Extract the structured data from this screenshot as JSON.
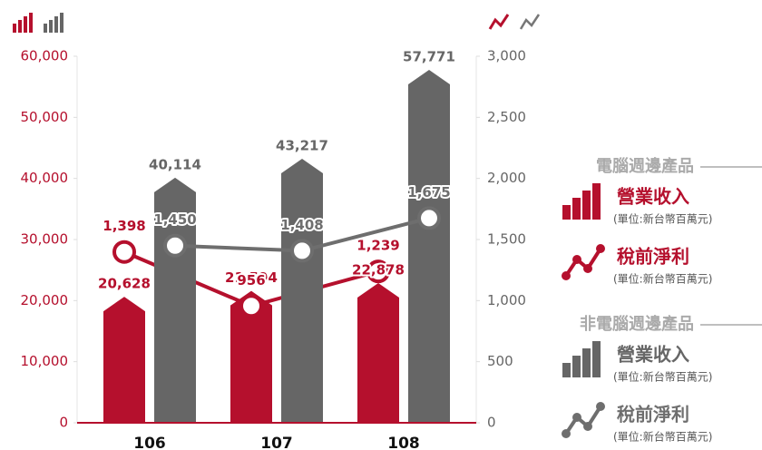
{
  "chart_data": {
    "type": "bar",
    "categories": [
      "106",
      "107",
      "108"
    ],
    "legend_groups": [
      {
        "title": "電腦週邊產品"
      },
      {
        "title": "非電腦週邊產品"
      }
    ],
    "series": [
      {
        "name": "營業收入",
        "note": "(單位:新台幣百萬元)",
        "type": "bar",
        "color": "#b5102d",
        "values": [
          20628,
          21594,
          22878
        ],
        "value_labels": [
          "20,628",
          "21,594",
          "22,878"
        ]
      },
      {
        "name": "稅前淨利",
        "note": "(單位:新台幣百萬元)",
        "type": "line",
        "axis": "y2",
        "color": "#b5102d",
        "values": [
          1398,
          956,
          1239
        ],
        "value_labels": [
          "1,398",
          "956",
          "1,239"
        ]
      },
      {
        "name": "營業收入",
        "note": "(單位:新台幣百萬元)",
        "type": "bar",
        "color": "#666666",
        "values": [
          40114,
          43217,
          57771
        ],
        "value_labels": [
          "40,114",
          "43,217",
          "57,771"
        ]
      },
      {
        "name": "稅前淨利",
        "note": "(單位:新台幣百萬元)",
        "type": "line",
        "axis": "y2",
        "color": "#6e6e6e",
        "values": [
          1450,
          1408,
          1675
        ],
        "value_labels": [
          "1,450",
          "1,408",
          "1,675"
        ]
      }
    ],
    "ylim": [
      0,
      60000
    ],
    "yticks": [
      0,
      {
        "value": 10000,
        "label": "10,000"
      },
      {
        "value": 20000,
        "label": "20,000"
      },
      {
        "value": 30000,
        "label": "30,000"
      },
      {
        "value": 40000,
        "label": "40,000"
      },
      {
        "value": 50000,
        "label": "50,000"
      },
      {
        "value": 60000,
        "label": "60,000"
      }
    ],
    "y2lim": [
      0,
      3000
    ],
    "y2ticks": [
      0,
      500,
      {
        "value": 1000,
        "label": "1,000"
      },
      {
        "value": 1500,
        "label": "1,500"
      },
      {
        "value": 2000,
        "label": "2,000"
      },
      {
        "value": 2500,
        "label": "2,500"
      },
      {
        "value": 3000,
        "label": "3,000"
      }
    ]
  }
}
